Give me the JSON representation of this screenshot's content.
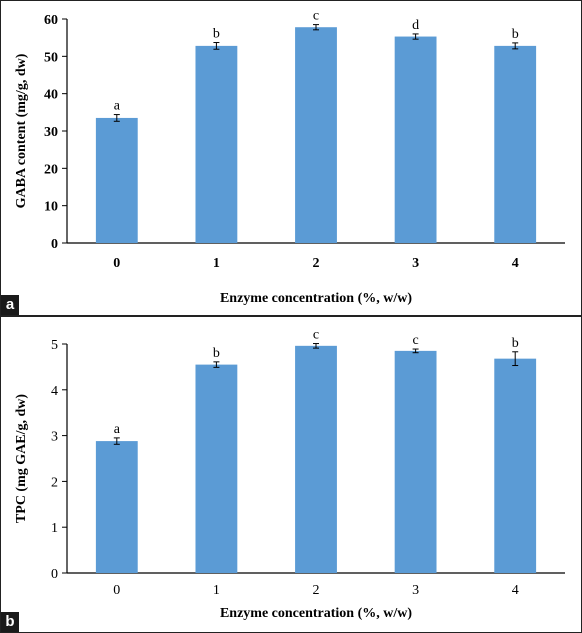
{
  "chart_data": [
    {
      "type": "bar",
      "panel_label": "a",
      "categories": [
        "0",
        "1",
        "2",
        "3",
        "4"
      ],
      "values": [
        33.5,
        52.8,
        57.8,
        55.3,
        52.8
      ],
      "errors": [
        0.9,
        0.9,
        0.7,
        0.7,
        0.8
      ],
      "significance": [
        "a",
        "b",
        "c",
        "d",
        "b"
      ],
      "xlabel": "Enzyme concentration (%, w/w)",
      "ylabel": "GABA content (mg/g, dw)",
      "ylim": [
        0,
        60
      ],
      "yticks": [
        0,
        10,
        20,
        30,
        40,
        50,
        60
      ],
      "grid": false,
      "bar_color": "#5b9bd5",
      "tick_labels_bold": true
    },
    {
      "type": "bar",
      "panel_label": "b",
      "categories": [
        "0",
        "1",
        "2",
        "3",
        "4"
      ],
      "values": [
        2.88,
        4.55,
        4.96,
        4.85,
        4.68
      ],
      "errors": [
        0.07,
        0.06,
        0.05,
        0.04,
        0.15
      ],
      "significance": [
        "a",
        "b",
        "c",
        "c",
        "b"
      ],
      "xlabel": "Enzyme concentration (%, w/w)",
      "ylabel": "TPC (mg GAE/g, dw)",
      "ylim": [
        0,
        5
      ],
      "yticks": [
        0,
        1,
        2,
        3,
        4,
        5
      ],
      "grid": false,
      "bar_color": "#5b9bd5",
      "tick_labels_bold": false
    }
  ]
}
